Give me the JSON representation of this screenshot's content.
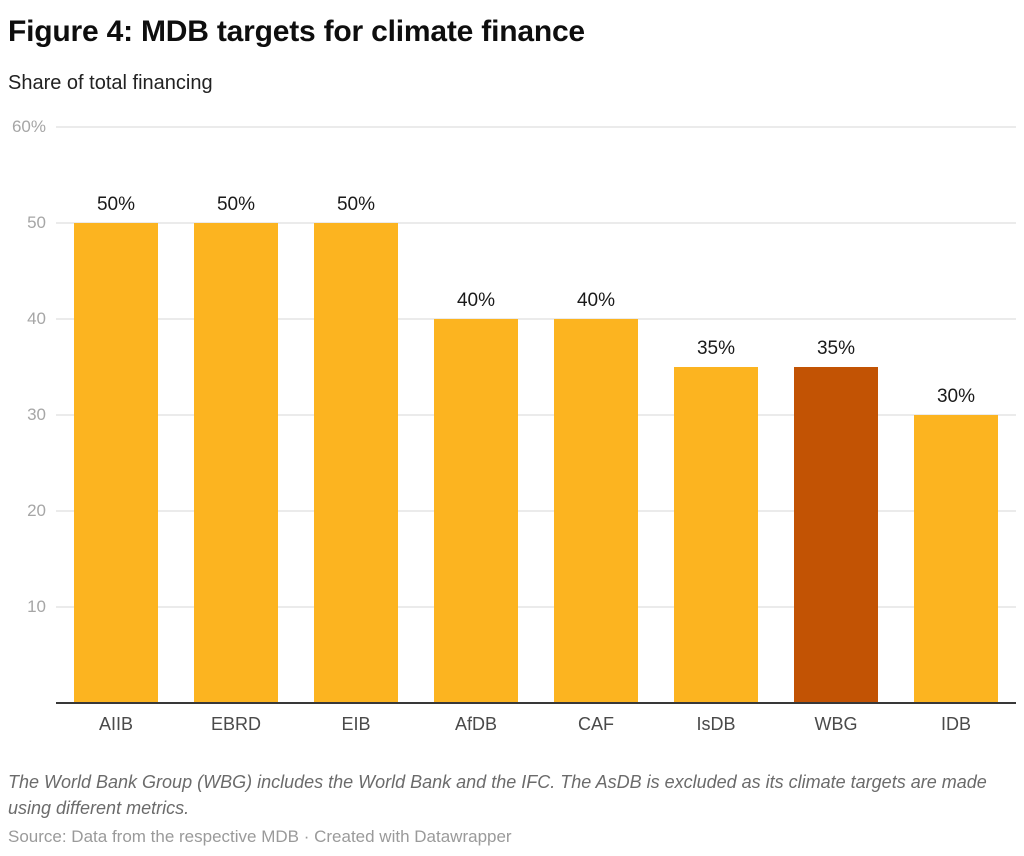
{
  "header": {
    "title": "Figure 4: MDB targets for climate finance",
    "subtitle": "Share of total financing"
  },
  "chart_data": {
    "type": "bar",
    "title": "Figure 4: MDB targets for climate finance",
    "subtitle": "Share of total financing",
    "categories": [
      "AIIB",
      "EBRD",
      "EIB",
      "AfDB",
      "CAF",
      "IsDB",
      "WBG",
      "IDB"
    ],
    "values": [
      50,
      50,
      50,
      40,
      40,
      35,
      35,
      30
    ],
    "bar_labels": [
      "50%",
      "50%",
      "50%",
      "40%",
      "40%",
      "35%",
      "35%",
      "30%"
    ],
    "ylim": [
      0,
      60
    ],
    "yticks": [
      10,
      20,
      30,
      40,
      50,
      60
    ],
    "ytick_labels": [
      "10",
      "20",
      "30",
      "40",
      "50",
      "60%"
    ],
    "grid": true,
    "legend": "none",
    "bar_color": "#FCB420",
    "highlight": {
      "category": "WBG",
      "index": 6,
      "color": "#C25304"
    }
  },
  "footer": {
    "note": "The World Bank Group (WBG) includes the World Bank and the IFC. The AsDB is excluded as its climate targets are made using different metrics.",
    "source": "Source: Data from the respective MDB · Created with Datawrapper"
  },
  "colors": {
    "bar": "#FCB420",
    "highlight_bar": "#C25304",
    "gridline": "#EBEBEB",
    "axis_line": "#383838",
    "title_text": "#0E0E0E",
    "value_label_text": "#1A1A1A",
    "ytick_text": "#A6A6A6",
    "category_text": "#4A4A4A",
    "note_text": "#6B6B6B",
    "source_text": "#9A9A9A"
  }
}
